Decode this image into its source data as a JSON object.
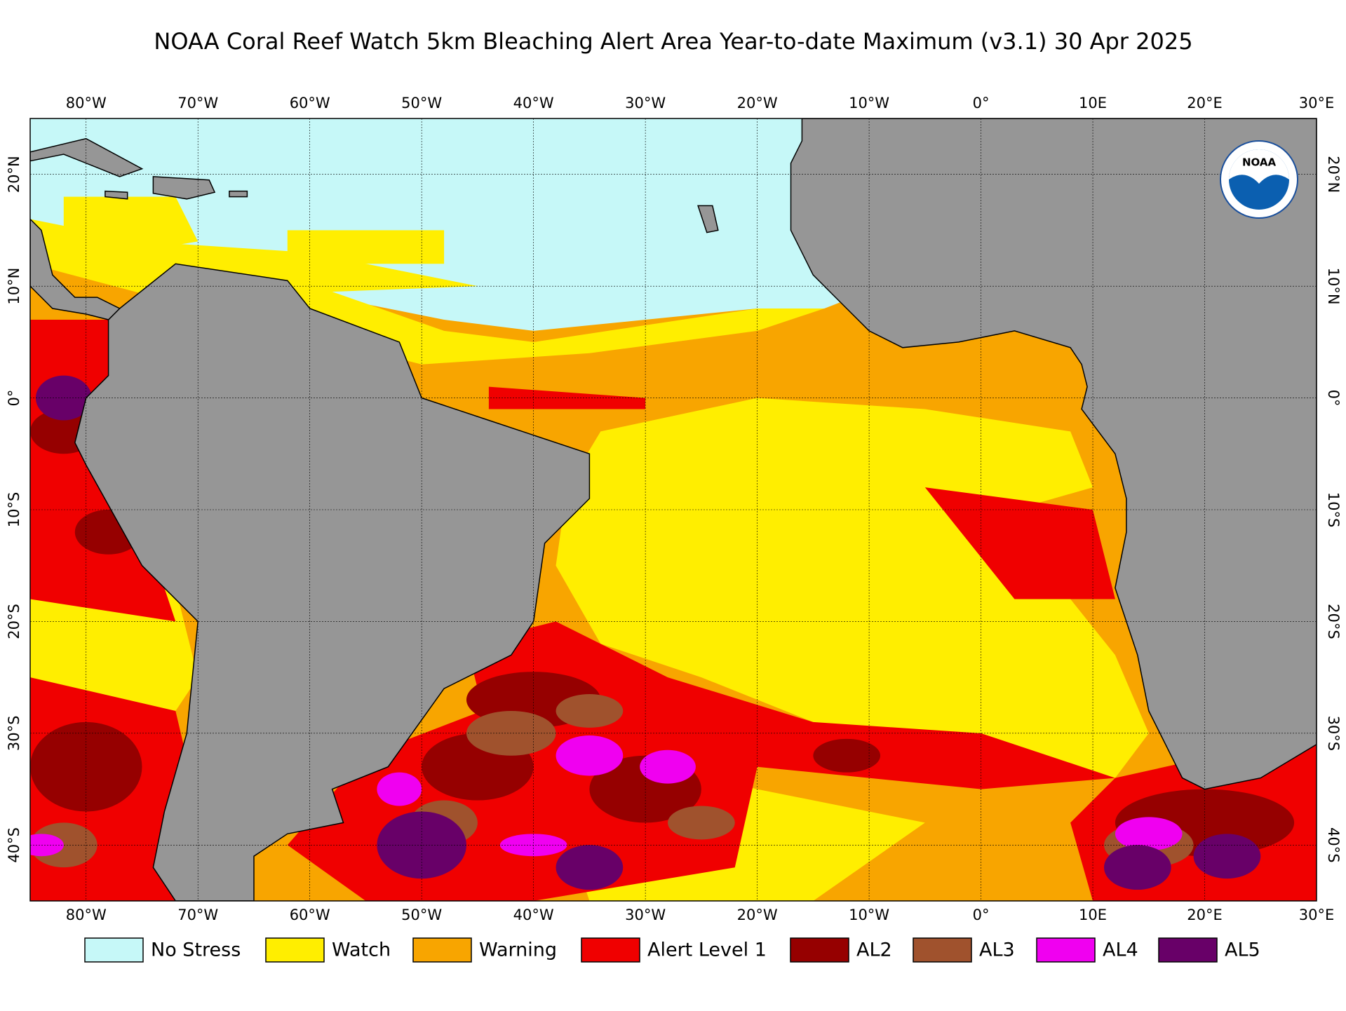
{
  "title": "NOAA Coral Reef Watch 5km Bleaching Alert Area Year-to-date Maximum  (v3.1)   30 Apr 2025",
  "logo": {
    "text": "NOAA"
  },
  "map": {
    "xlim": [
      -85,
      30
    ],
    "ylim": [
      -45,
      25
    ],
    "xticks": [
      {
        "value": -80,
        "label": "80°W"
      },
      {
        "value": -70,
        "label": "70°W"
      },
      {
        "value": -60,
        "label": "60°W"
      },
      {
        "value": -50,
        "label": "50°W"
      },
      {
        "value": -40,
        "label": "40°W"
      },
      {
        "value": -30,
        "label": "30°W"
      },
      {
        "value": -20,
        "label": "20°W"
      },
      {
        "value": -10,
        "label": "10°W"
      },
      {
        "value": 0,
        "label": "0°"
      },
      {
        "value": 10,
        "label": "10E"
      },
      {
        "value": 20,
        "label": "20°E"
      },
      {
        "value": 30,
        "label": "30°E"
      }
    ],
    "yticks": [
      {
        "value": 20,
        "label": "20°N"
      },
      {
        "value": 10,
        "label": "10°N"
      },
      {
        "value": 0,
        "label": "0°"
      },
      {
        "value": -10,
        "label": "10°S"
      },
      {
        "value": -20,
        "label": "20°S"
      },
      {
        "value": -30,
        "label": "30°S"
      },
      {
        "value": -40,
        "label": "40°S"
      }
    ],
    "grid": true
  },
  "legend": [
    {
      "name": "No Stress",
      "color": "#c6f8f8"
    },
    {
      "name": "Watch",
      "color": "#ffee00"
    },
    {
      "name": "Warning",
      "color": "#f8a500"
    },
    {
      "name": "Alert Level 1",
      "color": "#f00000"
    },
    {
      "name": "AL2",
      "color": "#960000"
    },
    {
      "name": "AL3",
      "color": "#a0522d"
    },
    {
      "name": "AL4",
      "color": "#f000f0"
    },
    {
      "name": "AL5",
      "color": "#680068"
    }
  ]
}
